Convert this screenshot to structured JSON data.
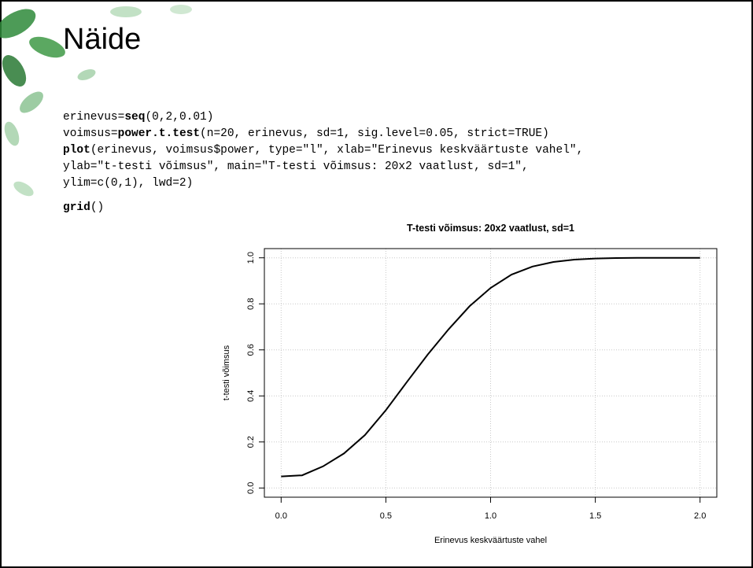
{
  "slide_title": "Näide",
  "code": [
    [
      {
        "text": "erinevus="
      },
      {
        "text": "seq",
        "bold": true
      },
      {
        "text": "(0,2,0.01)"
      }
    ],
    [
      {
        "text": "voimsus="
      },
      {
        "text": "power.t.test",
        "bold": true
      },
      {
        "text": "(n=20, erinevus, sd=1, sig.level=0.05, strict=TRUE)"
      }
    ],
    [
      {
        "text": "plot",
        "bold": true
      },
      {
        "text": "(erinevus, voimsus$power, type=\"l\", xlab=\"Erinevus keskväärtuste vahel\","
      }
    ],
    [
      {
        "text": "        ylab=\"t-testi võimsus\", main=\"T-testi võimsus: 20x2 vaatlust, sd=1\","
      }
    ],
    [
      {
        "text": "        ylim=c(0,1), lwd=2)"
      }
    ],
    [
      {
        "text": "grid",
        "bold": true
      },
      {
        "text": "()"
      }
    ]
  ],
  "chart_data": {
    "type": "line",
    "title": "T-testi võimsus: 20x2 vaatlust, sd=1",
    "x_label": "Erinevus keskväärtuste vahel",
    "y_label": "t-testi võimsus",
    "x": [
      0,
      0.1,
      0.2,
      0.3,
      0.4,
      0.5,
      0.6,
      0.7,
      0.8,
      0.9,
      1.0,
      1.1,
      1.2,
      1.3,
      1.4,
      1.5,
      1.6,
      1.7,
      1.8,
      1.9,
      2.0
    ],
    "series": [
      {
        "color": "#000000",
        "values": [
          0.05,
          0.055,
          0.094,
          0.15,
          0.23,
          0.338,
          0.46,
          0.58,
          0.69,
          0.79,
          0.869,
          0.927,
          0.962,
          0.982,
          0.992,
          0.997,
          0.999,
          1.0,
          1.0,
          1.0,
          1.0
        ]
      }
    ],
    "xlim": [
      -0.08,
      2.08
    ],
    "ylim": [
      -0.04,
      1.04
    ],
    "xticks": [
      {
        "value": 0,
        "label": "0.0"
      },
      0.5,
      {
        "value": 1,
        "label": "1.0"
      },
      1.5,
      {
        "value": 2,
        "label": "2.0"
      }
    ],
    "yticks": [
      {
        "value": 0,
        "label": "0.0"
      },
      0.2,
      0.4,
      0.6,
      0.8,
      {
        "value": 1,
        "label": "1.0"
      }
    ],
    "grid": true
  }
}
